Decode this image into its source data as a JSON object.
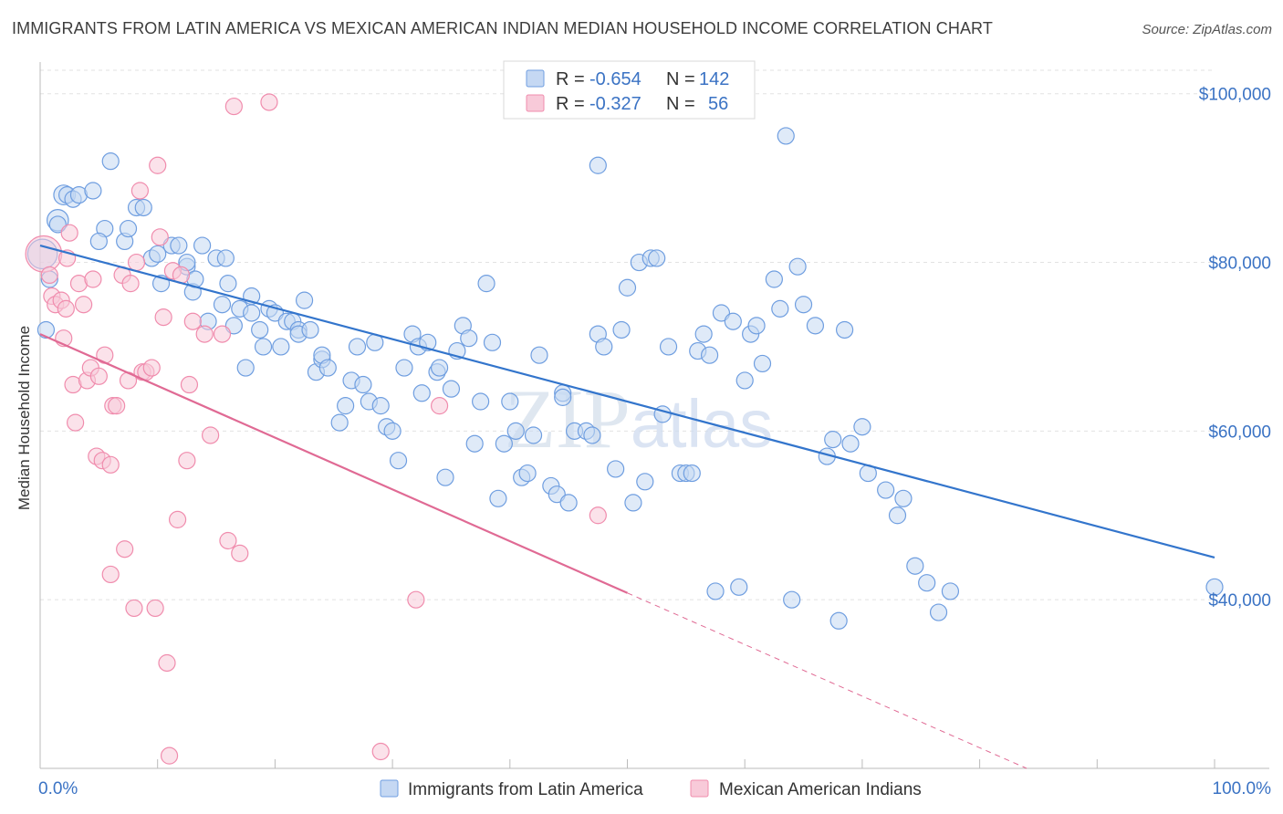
{
  "title": "IMMIGRANTS FROM LATIN AMERICA VS MEXICAN AMERICAN INDIAN MEDIAN HOUSEHOLD INCOME CORRELATION CHART",
  "source": "Source: ZipAtlas.com",
  "watermark": "ZIPatlas",
  "chart_data": {
    "type": "scatter",
    "ylabel": "Median Household Income",
    "xlim": [
      0,
      100
    ],
    "ylim": [
      20000,
      103000
    ],
    "y_ticks": [
      40000,
      60000,
      80000,
      100000
    ],
    "y_tick_labels": [
      "$40,000",
      "$60,000",
      "$80,000",
      "$100,000"
    ],
    "x_tick_labels": [
      "0.0%",
      "100.0%"
    ],
    "legend_box": [
      {
        "r_label": "R =",
        "r_value": "-0.654",
        "n_label": "N =",
        "n_value": "142",
        "color": "#6f9ee0"
      },
      {
        "r_label": "R =",
        "r_value": "-0.327",
        "n_label": "N =",
        "n_value": "56",
        "color": "#f08cad"
      }
    ],
    "series": [
      {
        "name": "Immigrants from Latin America",
        "color": "#6f9ee0",
        "fill": "#c5d8f3",
        "trend": {
          "x": [
            0,
            100
          ],
          "y": [
            82000,
            45000
          ],
          "color": "#3375cc"
        },
        "points": [
          [
            0.2,
            81,
            1.8
          ],
          [
            0.5,
            72,
            1
          ],
          [
            0.8,
            78,
            1
          ],
          [
            1.5,
            85,
            1.3
          ],
          [
            1.5,
            84.5,
            1
          ],
          [
            2,
            88,
            1.2
          ],
          [
            2.3,
            88,
            1
          ],
          [
            2.8,
            87.5,
            1
          ],
          [
            3.3,
            88,
            1
          ],
          [
            4.5,
            88.5,
            1
          ],
          [
            5.5,
            84,
            1
          ],
          [
            5,
            82.5,
            1
          ],
          [
            6,
            92,
            1
          ],
          [
            7.2,
            82.5,
            1
          ],
          [
            7.5,
            84,
            1
          ],
          [
            8.2,
            86.5,
            1
          ],
          [
            8.8,
            86.5,
            1
          ],
          [
            9.5,
            80.5,
            1
          ],
          [
            10,
            81,
            1
          ],
          [
            10.3,
            77.5,
            1
          ],
          [
            11.2,
            82,
            1
          ],
          [
            11.8,
            82,
            1
          ],
          [
            12.5,
            79.5,
            1
          ],
          [
            12.5,
            80,
            1
          ],
          [
            13,
            76.5,
            1
          ],
          [
            13.2,
            78,
            1
          ],
          [
            13.8,
            82,
            1
          ],
          [
            14.3,
            73,
            1
          ],
          [
            15,
            80.5,
            1
          ],
          [
            15.8,
            80.5,
            1
          ],
          [
            15.5,
            75,
            1
          ],
          [
            16,
            77.5,
            1
          ],
          [
            16.5,
            72.5,
            1
          ],
          [
            17,
            74.5,
            1
          ],
          [
            17.5,
            67.5,
            1
          ],
          [
            18,
            74,
            1
          ],
          [
            18,
            76,
            1
          ],
          [
            18.7,
            72,
            1
          ],
          [
            19,
            70,
            1
          ],
          [
            19.5,
            74.5,
            1
          ],
          [
            20,
            74,
            1
          ],
          [
            20.5,
            70,
            1
          ],
          [
            21,
            73,
            1
          ],
          [
            21.5,
            73,
            1
          ],
          [
            22,
            72,
            1
          ],
          [
            22,
            71.5,
            1
          ],
          [
            22.5,
            75.5,
            1
          ],
          [
            23,
            72,
            1
          ],
          [
            23.5,
            67,
            1
          ],
          [
            24,
            68.5,
            1
          ],
          [
            24,
            69,
            1
          ],
          [
            24.5,
            67.5,
            1
          ],
          [
            25.5,
            61,
            1
          ],
          [
            26,
            63,
            1
          ],
          [
            26.5,
            66,
            1
          ],
          [
            27,
            70,
            1
          ],
          [
            27.5,
            65.5,
            1
          ],
          [
            28,
            63.5,
            1
          ],
          [
            28.5,
            70.5,
            1
          ],
          [
            29,
            63,
            1
          ],
          [
            29.5,
            60.5,
            1
          ],
          [
            30,
            60,
            1
          ],
          [
            30.5,
            56.5,
            1
          ],
          [
            31,
            67.5,
            1
          ],
          [
            31.7,
            71.5,
            1
          ],
          [
            32.2,
            70,
            1
          ],
          [
            32.5,
            64.5,
            1
          ],
          [
            33,
            70.5,
            1
          ],
          [
            33.8,
            67,
            1
          ],
          [
            34,
            67.5,
            1
          ],
          [
            34.5,
            54.5,
            1
          ],
          [
            35,
            65,
            1
          ],
          [
            35.5,
            69.5,
            1
          ],
          [
            36,
            72.5,
            1
          ],
          [
            36.5,
            71,
            1
          ],
          [
            37,
            58.5,
            1
          ],
          [
            37.5,
            63.5,
            1
          ],
          [
            38,
            77.5,
            1
          ],
          [
            38.5,
            70.5,
            1
          ],
          [
            39,
            52,
            1
          ],
          [
            39.5,
            58.5,
            1
          ],
          [
            40,
            63.5,
            1
          ],
          [
            40.5,
            60,
            1
          ],
          [
            41,
            54.5,
            1
          ],
          [
            41.5,
            55,
            1
          ],
          [
            42,
            59.5,
            1
          ],
          [
            42.5,
            69,
            1
          ],
          [
            43.5,
            53.5,
            1
          ],
          [
            44,
            52.5,
            1
          ],
          [
            44.5,
            64.5,
            1
          ],
          [
            44.5,
            64,
            1
          ],
          [
            45,
            51.5,
            1
          ],
          [
            45.5,
            60,
            1
          ],
          [
            46.5,
            60,
            1
          ],
          [
            47,
            59.5,
            1
          ],
          [
            47.5,
            71.5,
            1
          ],
          [
            47.5,
            91.5,
            1
          ],
          [
            48,
            70,
            1
          ],
          [
            49,
            55.5,
            1
          ],
          [
            49.5,
            72,
            1
          ],
          [
            50,
            77,
            1
          ],
          [
            50.5,
            51.5,
            1
          ],
          [
            51,
            80,
            1
          ],
          [
            51.5,
            54,
            1
          ],
          [
            52,
            80.5,
            1
          ],
          [
            52.5,
            80.5,
            1
          ],
          [
            53,
            62,
            1
          ],
          [
            53.5,
            70,
            1
          ],
          [
            54.5,
            55,
            1
          ],
          [
            55,
            55,
            1
          ],
          [
            55.5,
            55,
            1
          ],
          [
            56,
            69.5,
            1
          ],
          [
            56.5,
            71.5,
            1
          ],
          [
            57,
            69,
            1
          ],
          [
            57.5,
            41,
            1
          ],
          [
            58,
            74,
            1
          ],
          [
            59,
            73,
            1
          ],
          [
            59.5,
            41.5,
            1
          ],
          [
            60,
            66,
            1
          ],
          [
            60.5,
            71.5,
            1
          ],
          [
            61,
            72.5,
            1
          ],
          [
            61.5,
            68,
            1
          ],
          [
            62.5,
            78,
            1
          ],
          [
            63,
            74.5,
            1
          ],
          [
            63.5,
            95,
            1
          ],
          [
            64,
            40,
            1
          ],
          [
            64.5,
            79.5,
            1
          ],
          [
            65,
            75,
            1
          ],
          [
            66,
            72.5,
            1
          ],
          [
            67,
            57,
            1
          ],
          [
            67.5,
            59,
            1
          ],
          [
            68,
            37.5,
            1
          ],
          [
            68.5,
            72,
            1
          ],
          [
            69,
            58.5,
            1
          ],
          [
            70,
            60.5,
            1
          ],
          [
            70.5,
            55,
            1
          ],
          [
            72,
            53,
            1
          ],
          [
            73,
            50,
            1
          ],
          [
            73.5,
            52,
            1
          ],
          [
            74.5,
            44,
            1
          ],
          [
            75.5,
            42,
            1
          ],
          [
            76.5,
            38.5,
            1
          ],
          [
            77.5,
            41,
            1
          ],
          [
            100,
            41.5,
            1
          ]
        ]
      },
      {
        "name": "Mexican American Indians",
        "color": "#f08cad",
        "fill": "#f8cad9",
        "trend": {
          "x": [
            0,
            50
          ],
          "y": [
            71500,
            40800
          ],
          "color": "#e06a94"
        },
        "trend_dashed": {
          "x": [
            50,
            84
          ],
          "y": [
            40800,
            20000
          ]
        },
        "points": [
          [
            0.3,
            81,
            2.2
          ],
          [
            0.8,
            78.5,
            1
          ],
          [
            1,
            76,
            1
          ],
          [
            1.3,
            75,
            1
          ],
          [
            1.8,
            75.5,
            1
          ],
          [
            2,
            71,
            1
          ],
          [
            2.2,
            74.5,
            1
          ],
          [
            2.3,
            80.5,
            1
          ],
          [
            2.5,
            83.5,
            1
          ],
          [
            2.8,
            65.5,
            1
          ],
          [
            3,
            61,
            1
          ],
          [
            3.3,
            77.5,
            1
          ],
          [
            3.7,
            75,
            1
          ],
          [
            4,
            66,
            1
          ],
          [
            4.3,
            67.5,
            1
          ],
          [
            4.5,
            78,
            1
          ],
          [
            4.8,
            57,
            1
          ],
          [
            5,
            66.5,
            1
          ],
          [
            5.3,
            56.5,
            1
          ],
          [
            5.5,
            69,
            1
          ],
          [
            6,
            56,
            1
          ],
          [
            6,
            43,
            1
          ],
          [
            6.2,
            63,
            1
          ],
          [
            6.5,
            63,
            1
          ],
          [
            7,
            78.5,
            1
          ],
          [
            7.2,
            46,
            1
          ],
          [
            7.5,
            66,
            1
          ],
          [
            7.7,
            77.5,
            1
          ],
          [
            8,
            39,
            1
          ],
          [
            8.2,
            80,
            1
          ],
          [
            8.5,
            88.5,
            1
          ],
          [
            8.7,
            67,
            1
          ],
          [
            9,
            67,
            1
          ],
          [
            9.5,
            67.5,
            1
          ],
          [
            9.8,
            39,
            1
          ],
          [
            10,
            91.5,
            1
          ],
          [
            10.2,
            83,
            1
          ],
          [
            10.5,
            73.5,
            1
          ],
          [
            10.8,
            32.5,
            1
          ],
          [
            11,
            21.5,
            1
          ],
          [
            11.3,
            79,
            1
          ],
          [
            11.7,
            49.5,
            1
          ],
          [
            12,
            78.5,
            1
          ],
          [
            12.5,
            56.5,
            1
          ],
          [
            12.7,
            65.5,
            1
          ],
          [
            13,
            73,
            1
          ],
          [
            14,
            71.5,
            1
          ],
          [
            14.5,
            59.5,
            1
          ],
          [
            15.5,
            71.5,
            1
          ],
          [
            16,
            47,
            1
          ],
          [
            16.5,
            98.5,
            1
          ],
          [
            17,
            45.5,
            1
          ],
          [
            19.5,
            99,
            1
          ],
          [
            29,
            22,
            1
          ],
          [
            32,
            40,
            1
          ],
          [
            34,
            63,
            1
          ],
          [
            47.5,
            50,
            1
          ]
        ]
      }
    ],
    "bottom_legend": [
      "Immigrants from Latin America",
      "Mexican American Indians"
    ]
  }
}
